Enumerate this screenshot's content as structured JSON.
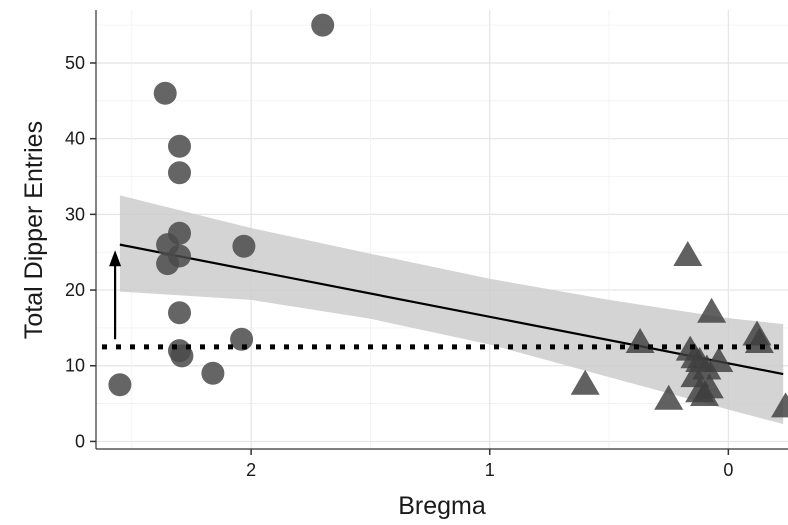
{
  "chart_data": {
    "type": "scatter",
    "title": "",
    "xlabel": "Bregma",
    "ylabel": "Total Dipper Entries",
    "xlim": [
      2.65,
      -0.25
    ],
    "x_reversed": true,
    "ylim": [
      -1,
      57
    ],
    "x_ticks": [
      2,
      1,
      0
    ],
    "y_ticks": [
      0,
      10,
      20,
      30,
      40,
      50
    ],
    "grid": true,
    "legend": "none",
    "colors": {
      "circle": "#4a4a4a",
      "triangle": "#3e3e3e",
      "band": "#cccccc",
      "fit": "#000000",
      "threshold": "#000000"
    },
    "series": [
      {
        "marker": "circle",
        "x": [
          2.55,
          2.36,
          2.35,
          2.35,
          2.3,
          2.3,
          2.3,
          2.3,
          2.3,
          2.3,
          2.29,
          2.16,
          2.04,
          2.03,
          1.7
        ],
        "y": [
          7.5,
          46,
          26,
          23.5,
          39,
          35.5,
          27.5,
          24.5,
          17,
          12,
          11.3,
          9,
          13.5,
          25.8,
          55
        ]
      },
      {
        "marker": "triangle",
        "x": [
          0.6,
          0.37,
          0.25,
          0.17,
          0.16,
          0.14,
          0.14,
          0.12,
          0.12,
          0.1,
          0.09,
          0.08,
          0.07,
          0.04,
          -0.12,
          -0.13,
          -0.24
        ],
        "y": [
          7.5,
          13,
          5.5,
          24.5,
          12,
          11,
          8.5,
          6.5,
          10.5,
          6,
          9.5,
          7,
          17,
          10.5,
          14,
          13,
          4.5
        ]
      }
    ],
    "fit_line": {
      "x": [
        2.55,
        -0.23
      ],
      "y": [
        26,
        8.9
      ]
    },
    "confidence_band": {
      "x": [
        2.55,
        2.0,
        1.5,
        1.0,
        0.5,
        0.0,
        -0.23
      ],
      "upper": [
        32.5,
        28.2,
        24.8,
        21.5,
        18.7,
        16.3,
        15.5
      ],
      "lower": [
        19.8,
        18.7,
        16.2,
        12.8,
        8.5,
        4.2,
        2.3
      ]
    },
    "threshold": {
      "y": 12.5
    },
    "arrow": {
      "x": 2.57,
      "y_from": 13.5,
      "y_to": 25
    }
  }
}
